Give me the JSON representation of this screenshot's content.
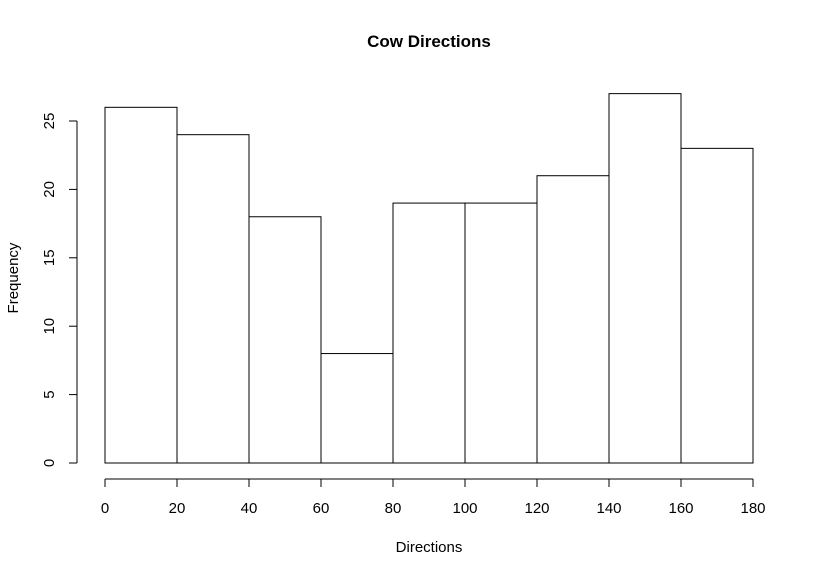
{
  "chart_data": {
    "type": "bar",
    "title": "Cow Directions",
    "xlabel": "Directions",
    "ylabel": "Frequency",
    "bins": [
      {
        "from": 0,
        "to": 20,
        "value": 26
      },
      {
        "from": 20,
        "to": 40,
        "value": 24
      },
      {
        "from": 40,
        "to": 60,
        "value": 18
      },
      {
        "from": 60,
        "to": 80,
        "value": 8
      },
      {
        "from": 80,
        "to": 100,
        "value": 19
      },
      {
        "from": 100,
        "to": 120,
        "value": 19
      },
      {
        "from": 120,
        "to": 140,
        "value": 21
      },
      {
        "from": 140,
        "to": 160,
        "value": 27
      },
      {
        "from": 160,
        "to": 180,
        "value": 23
      }
    ],
    "xlim": [
      0,
      180
    ],
    "ylim": [
      0,
      25
    ],
    "x_ticks": [
      "0",
      "20",
      "40",
      "60",
      "80",
      "100",
      "120",
      "140",
      "160",
      "180"
    ],
    "y_ticks": [
      "0",
      "5",
      "10",
      "15",
      "20",
      "25"
    ],
    "grid": false,
    "colors": {
      "bar_fill": "#ffffff",
      "bar_stroke": "#000000"
    }
  }
}
